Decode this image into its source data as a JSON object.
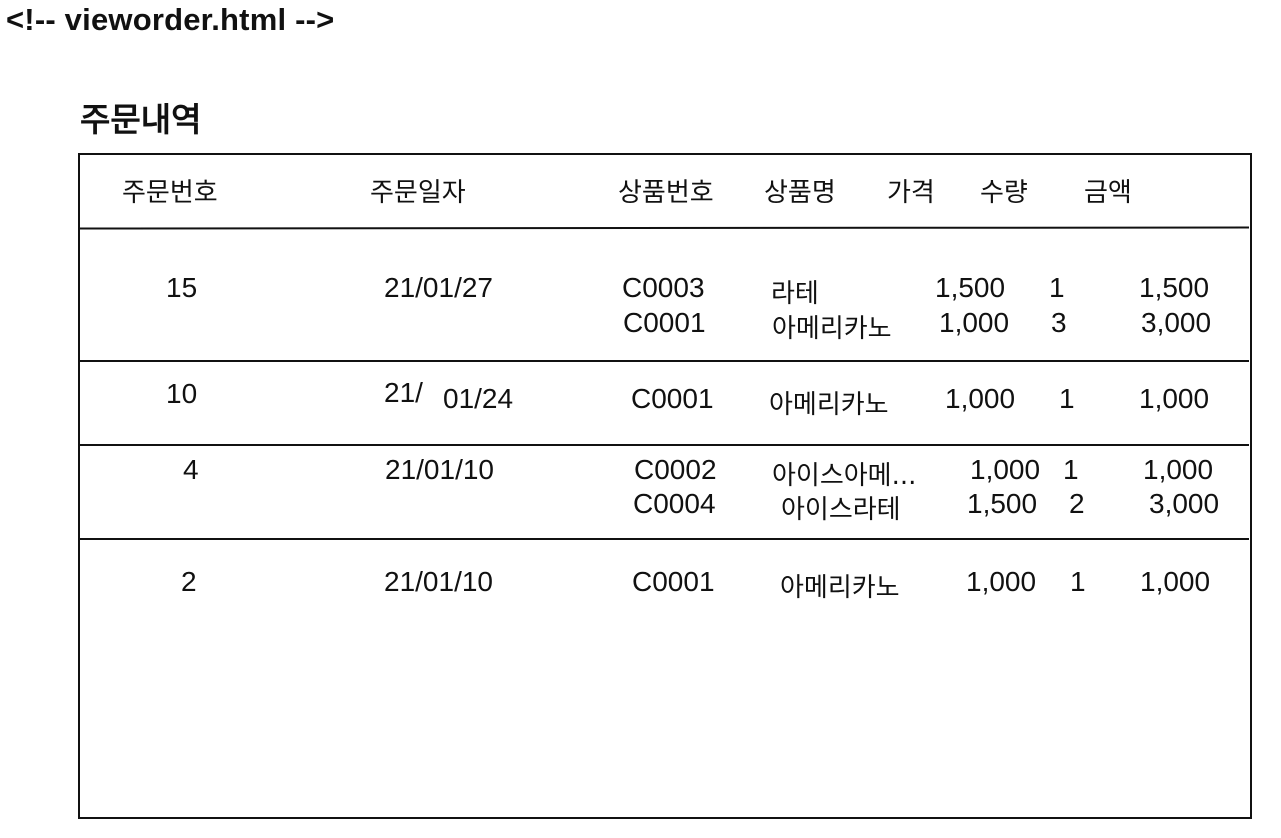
{
  "file_comment": "<!-- vieworder.html -->",
  "page_title": "주문내역",
  "columns": [
    "주문번호",
    "주문일자",
    "상품번호",
    "상품명",
    "가격",
    "수량",
    "금액"
  ],
  "orders": [
    {
      "order_no": "15",
      "order_date": "21/01/27",
      "items": [
        {
          "product_no": "C0003",
          "name": "라테",
          "price": "1,500",
          "qty": "1",
          "amount": "1,500"
        },
        {
          "product_no": "C0001",
          "name": "아메리카노",
          "price": "1,000",
          "qty": "3",
          "amount": "3,000"
        }
      ]
    },
    {
      "order_no": "10",
      "order_date_a": "21/",
      "order_date_b": "01/24",
      "items": [
        {
          "product_no": "C0001",
          "name": "아메리카노",
          "price": "1,000",
          "qty": "1",
          "amount": "1,000"
        }
      ]
    },
    {
      "order_no": "4",
      "order_date": "21/01/10",
      "items": [
        {
          "product_no": "C0002",
          "name": "아이스아메...",
          "price": "1,000",
          "qty": "1",
          "amount": "1,000"
        },
        {
          "product_no": "C0004",
          "name": "아이스라테",
          "price": "1,500",
          "qty": "2",
          "amount": "3,000"
        }
      ]
    },
    {
      "order_no": "2",
      "order_date": "21/01/10",
      "items": [
        {
          "product_no": "C0001",
          "name": "아메리카노",
          "price": "1,000",
          "qty": "1",
          "amount": "1,000"
        }
      ]
    }
  ]
}
